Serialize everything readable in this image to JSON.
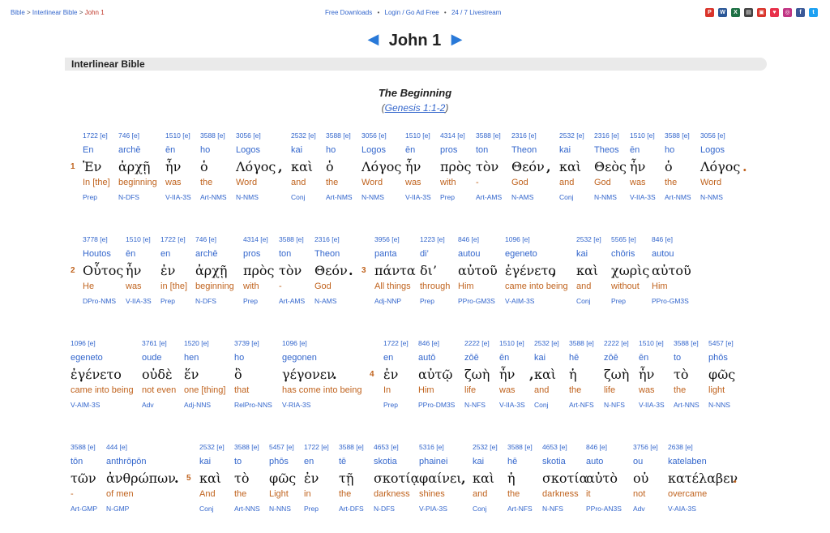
{
  "breadcrumb": {
    "home": "Bible",
    "sep1": " > ",
    "section": "Interlinear Bible",
    "sep2": " > ",
    "current": "John 1"
  },
  "toplinks": {
    "downloads": "Free Downloads",
    "login": "Login / Go Ad Free",
    "livestream": "24 / 7 Livestream"
  },
  "social_icons": [
    "pdf-icon",
    "word-icon",
    "excel-icon",
    "print-icon",
    "app-icon",
    "pocket-icon",
    "instagram-icon",
    "facebook-icon",
    "twitter-icon"
  ],
  "chapter": {
    "prev": "◀",
    "title": "John 1",
    "next": "▶"
  },
  "section_title": "Interlinear Bible",
  "heading": "The Beginning",
  "subheading": {
    "open": "(",
    "ref": "Genesis 1:1-2",
    "close": ")"
  },
  "rows": [
    {
      "items": [
        {
          "kind": "v",
          "text": "1"
        },
        {
          "kind": "w",
          "num": "1722 [e]",
          "tr": "En",
          "gk": "Ἐν",
          "en": "In [the]",
          "pa": "Prep"
        },
        {
          "kind": "w",
          "num": "746 [e]",
          "tr": "archē",
          "gk": "ἀρχῇ",
          "en": "beginning",
          "pa": "N-DFS"
        },
        {
          "kind": "w",
          "num": "1510 [e]",
          "tr": "ēn",
          "gk": "ἦν",
          "en": "was",
          "pa": "V-IIA-3S"
        },
        {
          "kind": "w",
          "num": "3588 [e]",
          "tr": "ho",
          "gk": "ὁ",
          "en": "the",
          "pa": "Art-NMS"
        },
        {
          "kind": "w",
          "num": "3056 [e]",
          "tr": "Logos",
          "gk": "Λόγος",
          "en": "Word",
          "pa": "N-NMS"
        },
        {
          "kind": "p",
          "text": ","
        },
        {
          "kind": "w",
          "num": "2532 [e]",
          "tr": "kai",
          "gk": "καὶ",
          "en": "and",
          "pa": "Conj"
        },
        {
          "kind": "w",
          "num": "3588 [e]",
          "tr": "ho",
          "gk": "ὁ",
          "en": "the",
          "pa": "Art-NMS"
        },
        {
          "kind": "w",
          "num": "3056 [e]",
          "tr": "Logos",
          "gk": "Λόγος",
          "en": "Word",
          "pa": "N-NMS"
        },
        {
          "kind": "w",
          "num": "1510 [e]",
          "tr": "ēn",
          "gk": "ἦν",
          "en": "was",
          "pa": "V-IIA-3S"
        },
        {
          "kind": "w",
          "num": "4314 [e]",
          "tr": "pros",
          "gk": "πρὸς",
          "en": "with",
          "pa": "Prep"
        },
        {
          "kind": "w",
          "num": "3588 [e]",
          "tr": "ton",
          "gk": "τὸν",
          "en": "-",
          "pa": "Art-AMS"
        },
        {
          "kind": "w",
          "num": "2316 [e]",
          "tr": "Theon",
          "gk": "Θεόν",
          "en": "God",
          "pa": "N-AMS"
        },
        {
          "kind": "p",
          "text": ","
        },
        {
          "kind": "w",
          "num": "2532 [e]",
          "tr": "kai",
          "gk": "καὶ",
          "en": "and",
          "pa": "Conj"
        },
        {
          "kind": "w",
          "num": "2316 [e]",
          "tr": "Theos",
          "gk": "Θεὸς",
          "en": "God",
          "pa": "N-NMS"
        },
        {
          "kind": "w",
          "num": "1510 [e]",
          "tr": "ēn",
          "gk": "ἦν",
          "en": "was",
          "pa": "V-IIA-3S"
        },
        {
          "kind": "w",
          "num": "3588 [e]",
          "tr": "ho",
          "gk": "ὁ",
          "en": "the",
          "pa": "Art-NMS"
        },
        {
          "kind": "w",
          "num": "3056 [e]",
          "tr": "Logos",
          "gk": "Λόγος",
          "en": "Word",
          "pa": "N-NMS"
        },
        {
          "kind": "p",
          "text": ".",
          "red": true
        }
      ]
    },
    {
      "items": [
        {
          "kind": "v",
          "text": "2"
        },
        {
          "kind": "w",
          "num": "3778 [e]",
          "tr": "Houtos",
          "gk": "Οὗτος",
          "en": "He",
          "pa": "DPro-NMS"
        },
        {
          "kind": "w",
          "num": "1510 [e]",
          "tr": "ēn",
          "gk": "ἦν",
          "en": "was",
          "pa": "V-IIA-3S"
        },
        {
          "kind": "w",
          "num": "1722 [e]",
          "tr": "en",
          "gk": "ἐν",
          "en": "in [the]",
          "pa": "Prep"
        },
        {
          "kind": "w",
          "num": "746 [e]",
          "tr": "archē",
          "gk": "ἀρχῇ",
          "en": "beginning",
          "pa": "N-DFS"
        },
        {
          "kind": "w",
          "num": "4314 [e]",
          "tr": "pros",
          "gk": "πρὸς",
          "en": "with",
          "pa": "Prep"
        },
        {
          "kind": "w",
          "num": "3588 [e]",
          "tr": "ton",
          "gk": "τὸν",
          "en": "-",
          "pa": "Art-AMS"
        },
        {
          "kind": "w",
          "num": "2316 [e]",
          "tr": "Theon",
          "gk": "Θεόν",
          "en": "God",
          "pa": "N-AMS"
        },
        {
          "kind": "p",
          "text": "."
        },
        {
          "kind": "v",
          "text": "3"
        },
        {
          "kind": "w",
          "num": "3956 [e]",
          "tr": "panta",
          "gk": "πάντα",
          "en": "All things",
          "pa": "Adj-NNP"
        },
        {
          "kind": "w",
          "num": "1223 [e]",
          "tr": "di’",
          "gk": "δι’",
          "en": "through",
          "pa": "Prep"
        },
        {
          "kind": "w",
          "num": "846 [e]",
          "tr": "autou",
          "gk": "αὐτοῦ",
          "en": "Him",
          "pa": "PPro-GM3S"
        },
        {
          "kind": "w",
          "num": "1096 [e]",
          "tr": "egeneto",
          "gk": "ἐγένετο",
          "en": "came into being",
          "pa": "V-AIM-3S"
        },
        {
          "kind": "p",
          "text": ","
        },
        {
          "kind": "w",
          "num": "2532 [e]",
          "tr": "kai",
          "gk": "καὶ",
          "en": "and",
          "pa": "Conj"
        },
        {
          "kind": "w",
          "num": "5565 [e]",
          "tr": "chōris",
          "gk": "χωρὶς",
          "en": "without",
          "pa": "Prep"
        },
        {
          "kind": "w",
          "num": "846 [e]",
          "tr": "autou",
          "gk": "αὐτοῦ",
          "en": "Him",
          "pa": "PPro-GM3S"
        }
      ]
    },
    {
      "items": [
        {
          "kind": "w",
          "num": "1096 [e]",
          "tr": "egeneto",
          "gk": "ἐγένετο",
          "en": "came into being",
          "pa": "V-AIM-3S"
        },
        {
          "kind": "w",
          "num": "3761 [e]",
          "tr": "oude",
          "gk": "οὐδὲ",
          "en": "not even",
          "pa": "Adv"
        },
        {
          "kind": "w",
          "num": "1520 [e]",
          "tr": "hen",
          "gk": "ἕν",
          "en": "one [thing]",
          "pa": "Adj-NNS"
        },
        {
          "kind": "w",
          "num": "3739 [e]",
          "tr": "ho",
          "gk": "ὃ",
          "en": "that",
          "pa": "RelPro-NNS"
        },
        {
          "kind": "w",
          "num": "1096 [e]",
          "tr": "gegonen",
          "gk": "γέγονεν",
          "en": "has come into being",
          "pa": "V-RIA-3S"
        },
        {
          "kind": "p",
          "text": "."
        },
        {
          "kind": "v",
          "text": "4"
        },
        {
          "kind": "w",
          "num": "1722 [e]",
          "tr": "en",
          "gk": "ἐν",
          "en": "In",
          "pa": "Prep"
        },
        {
          "kind": "w",
          "num": "846 [e]",
          "tr": "autō",
          "gk": "αὐτῷ",
          "en": "Him",
          "pa": "PPro-DM3S"
        },
        {
          "kind": "w",
          "num": "2222 [e]",
          "tr": "zōē",
          "gk": "ζωὴ",
          "en": "life",
          "pa": "N-NFS"
        },
        {
          "kind": "w",
          "num": "1510 [e]",
          "tr": "ēn",
          "gk": "ἦν",
          "en": "was",
          "pa": "V-IIA-3S"
        },
        {
          "kind": "p",
          "text": ","
        },
        {
          "kind": "w",
          "num": "2532 [e]",
          "tr": "kai",
          "gk": "καὶ",
          "en": "and",
          "pa": "Conj"
        },
        {
          "kind": "w",
          "num": "3588 [e]",
          "tr": "hē",
          "gk": "ἡ",
          "en": "the",
          "pa": "Art-NFS"
        },
        {
          "kind": "w",
          "num": "2222 [e]",
          "tr": "zōē",
          "gk": "ζωὴ",
          "en": "life",
          "pa": "N-NFS"
        },
        {
          "kind": "w",
          "num": "1510 [e]",
          "tr": "ēn",
          "gk": "ἦν",
          "en": "was",
          "pa": "V-IIA-3S"
        },
        {
          "kind": "w",
          "num": "3588 [e]",
          "tr": "to",
          "gk": "τὸ",
          "en": "the",
          "pa": "Art-NNS"
        },
        {
          "kind": "w",
          "num": "5457 [e]",
          "tr": "phōs",
          "gk": "φῶς",
          "en": "light",
          "pa": "N-NNS"
        }
      ]
    },
    {
      "items": [
        {
          "kind": "w",
          "num": "3588 [e]",
          "tr": "tōn",
          "gk": "τῶν",
          "en": "-",
          "pa": "Art-GMP"
        },
        {
          "kind": "w",
          "num": "444 [e]",
          "tr": "anthrōpōn",
          "gk": "ἀνθρώπων",
          "en": "of men",
          "pa": "N-GMP"
        },
        {
          "kind": "p",
          "text": "."
        },
        {
          "kind": "v",
          "text": "5"
        },
        {
          "kind": "w",
          "num": "2532 [e]",
          "tr": "kai",
          "gk": "καὶ",
          "en": "And",
          "pa": "Conj"
        },
        {
          "kind": "w",
          "num": "3588 [e]",
          "tr": "to",
          "gk": "τὸ",
          "en": "the",
          "pa": "Art-NNS"
        },
        {
          "kind": "w",
          "num": "5457 [e]",
          "tr": "phōs",
          "gk": "φῶς",
          "en": "Light",
          "pa": "N-NNS"
        },
        {
          "kind": "w",
          "num": "1722 [e]",
          "tr": "en",
          "gk": "ἐν",
          "en": "in",
          "pa": "Prep"
        },
        {
          "kind": "w",
          "num": "3588 [e]",
          "tr": "tē",
          "gk": "τῇ",
          "en": "the",
          "pa": "Art-DFS"
        },
        {
          "kind": "w",
          "num": "4653 [e]",
          "tr": "skotia",
          "gk": "σκοτίᾳ",
          "en": "darkness",
          "pa": "N-DFS"
        },
        {
          "kind": "w",
          "num": "5316 [e]",
          "tr": "phainei",
          "gk": "φαίνει",
          "en": "shines",
          "pa": "V-PIA-3S"
        },
        {
          "kind": "p",
          "text": ","
        },
        {
          "kind": "w",
          "num": "2532 [e]",
          "tr": "kai",
          "gk": "καὶ",
          "en": "and",
          "pa": "Conj"
        },
        {
          "kind": "w",
          "num": "3588 [e]",
          "tr": "hē",
          "gk": "ἡ",
          "en": "the",
          "pa": "Art-NFS"
        },
        {
          "kind": "w",
          "num": "4653 [e]",
          "tr": "skotia",
          "gk": "σκοτία",
          "en": "darkness",
          "pa": "N-NFS"
        },
        {
          "kind": "w",
          "num": "846 [e]",
          "tr": "auto",
          "gk": "αὐτὸ",
          "en": "it",
          "pa": "PPro-AN3S"
        },
        {
          "kind": "w",
          "num": "3756 [e]",
          "tr": "ou",
          "gk": "οὐ",
          "en": "not",
          "pa": "Adv"
        },
        {
          "kind": "w",
          "num": "2638 [e]",
          "tr": "katelaben",
          "gk": "κατέλαβεν",
          "en": "overcame",
          "pa": "V-AIA-3S"
        },
        {
          "kind": "p",
          "text": ".",
          "red": true
        }
      ]
    }
  ]
}
